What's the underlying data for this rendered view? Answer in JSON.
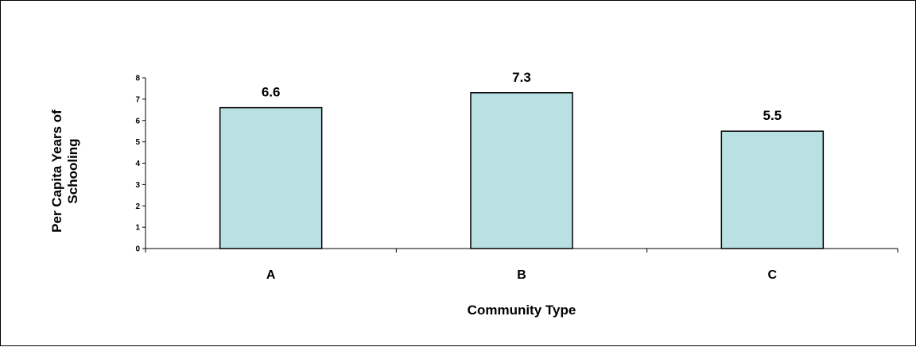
{
  "chart_data": {
    "type": "bar",
    "categories": [
      "A",
      "B",
      "C"
    ],
    "values": [
      6.6,
      7.3,
      5.5
    ],
    "data_labels": [
      "6.6",
      "7.3",
      "5.5"
    ],
    "xlabel": "Community Type",
    "ylabel_lines": [
      "Per Capita Years of",
      "Schooling"
    ],
    "ylim": [
      0,
      8
    ],
    "yticks": [
      "0",
      "1",
      "2",
      "3",
      "4",
      "5",
      "6",
      "7",
      "8"
    ],
    "grid": false,
    "bar_color": "#b9e0e3",
    "bar_edge_color": "#000000"
  }
}
